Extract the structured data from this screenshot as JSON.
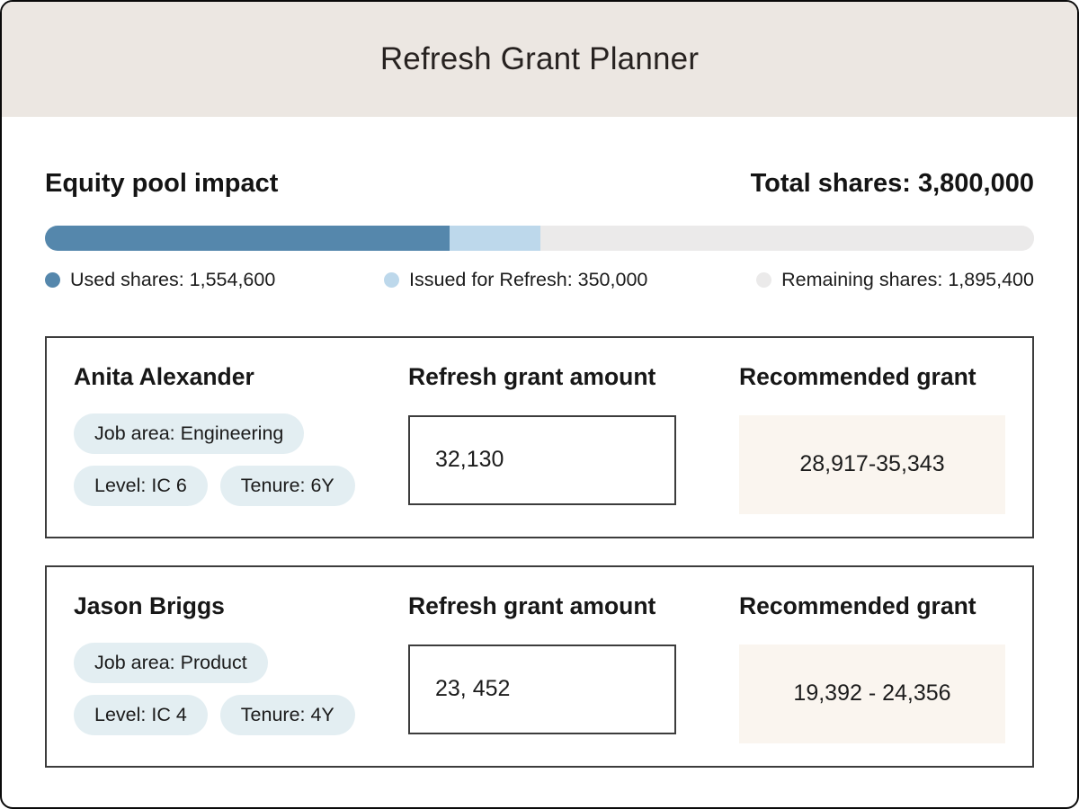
{
  "header": {
    "title": "Refresh Grant Planner"
  },
  "equity": {
    "section_title": "Equity pool impact",
    "total_label": "Total shares: 3,800,000",
    "bar": {
      "total_shares": 3800000,
      "segments": [
        {
          "name": "used",
          "label": "Used shares:  1,554,600",
          "value": 1554600,
          "color": "#5587AC"
        },
        {
          "name": "refresh",
          "label": "Issued for Refresh: 350,000",
          "value": 350000,
          "color": "#BDD8EB"
        },
        {
          "name": "remaining",
          "label": "Remaining shares: 1,895,400",
          "value": 1895400,
          "color": "#EBEAEA"
        }
      ]
    }
  },
  "employees": [
    {
      "name": "Anita Alexander",
      "chips": [
        "Job area: Engineering",
        "Level: IC 6",
        "Tenure: 6Y"
      ],
      "grant_label": "Refresh grant amount",
      "grant_value": "32,130",
      "recommended_label": "Recommended grant",
      "recommended_range": "28,917-35,343"
    },
    {
      "name": "Jason Briggs",
      "chips": [
        "Job area: Product",
        "Level: IC 4",
        "Tenure: 4Y"
      ],
      "grant_label": "Refresh grant amount",
      "grant_value": "23, 452",
      "recommended_label": "Recommended grant",
      "recommended_range": "19,392 - 24,356"
    }
  ],
  "colors": {
    "header_bg": "#ECE7E2",
    "chip_bg": "#E3EEF2",
    "recommended_bg": "#FAF5EF",
    "card_border": "#3C3C3C",
    "bar_track": "#EEEDEC"
  }
}
